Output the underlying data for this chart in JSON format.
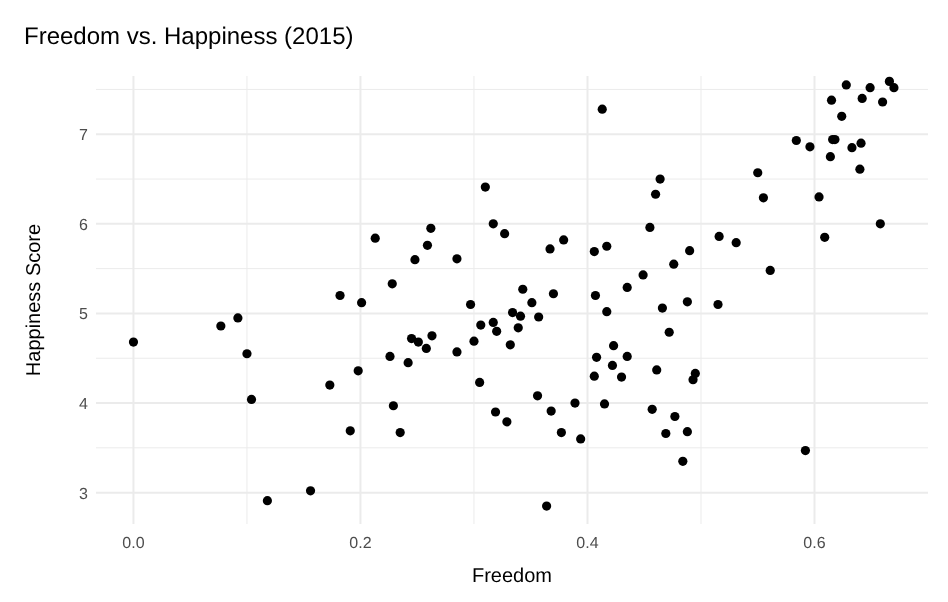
{
  "chart_data": {
    "type": "scatter",
    "title": "Freedom vs. Happiness (2015)",
    "xlabel": "Freedom",
    "ylabel": "Happiness Score",
    "xlim": [
      -0.033,
      0.7
    ],
    "ylim": [
      2.65,
      7.65
    ],
    "xticks": [
      {
        "value": 0,
        "label": "0.0"
      },
      {
        "value": 0.1,
        "label": null
      },
      {
        "value": 0.2,
        "label": "0.2"
      },
      {
        "value": 0.3,
        "label": null
      },
      {
        "value": 0.4,
        "label": "0.4"
      },
      {
        "value": 0.5,
        "label": null
      },
      {
        "value": 0.6,
        "label": "0.6"
      }
    ],
    "yticks": [
      3,
      {
        "value": 3.5,
        "label": null
      },
      4,
      {
        "value": 4.5,
        "label": null
      },
      5,
      {
        "value": 5.5,
        "label": null
      },
      6,
      {
        "value": 6.5,
        "label": null
      },
      7,
      {
        "value": 7.5,
        "label": null
      }
    ],
    "grid": true,
    "marker": "circle",
    "tick_labels": "xy",
    "series": [
      {
        "color": "#000000",
        "x": [
          0.182,
          0.201,
          0.213,
          0.228,
          0.248,
          0.259,
          0.262,
          0.285,
          0.297,
          0.31,
          0.317,
          0.327,
          0.343,
          0.351,
          0.367,
          0.379,
          0.37,
          0.413,
          0.406,
          0.417,
          0.407,
          0.435,
          0.449,
          0.455,
          0.46,
          0.464,
          0.476,
          0.49,
          0.516,
          0.531,
          0.55,
          0.555,
          0.561,
          0.584,
          0.596,
          0.604,
          0.609,
          0.615,
          0.616,
          0.618,
          0.614,
          0.624,
          0.628,
          0.633,
          0.641,
          0.64,
          0.642,
          0.649,
          0.658,
          0.66,
          0.666,
          0.67,
          0.417,
          0.466,
          0.488,
          0.515,
          0.0,
          0.077,
          0.092,
          0.1,
          0.104,
          0.118,
          0.156,
          0.173,
          0.191,
          0.198,
          0.226,
          0.229,
          0.235,
          0.242,
          0.245,
          0.251,
          0.258,
          0.263,
          0.285,
          0.3,
          0.305,
          0.306,
          0.317,
          0.319,
          0.32,
          0.329,
          0.332,
          0.334,
          0.339,
          0.341,
          0.357,
          0.356,
          0.368,
          0.364,
          0.377,
          0.389,
          0.394,
          0.406,
          0.408,
          0.415,
          0.422,
          0.423,
          0.43,
          0.435,
          0.461,
          0.457,
          0.472,
          0.469,
          0.477,
          0.484,
          0.488,
          0.493,
          0.495,
          0.592
        ],
        "values": [
          5.2,
          5.12,
          5.84,
          5.33,
          5.6,
          5.76,
          5.95,
          5.61,
          5.1,
          6.41,
          6.0,
          5.89,
          5.27,
          5.12,
          5.72,
          5.82,
          5.22,
          7.28,
          5.69,
          5.75,
          5.2,
          5.29,
          5.43,
          5.96,
          6.33,
          6.5,
          5.55,
          5.7,
          5.86,
          5.79,
          6.57,
          6.29,
          5.48,
          6.93,
          6.86,
          6.3,
          5.85,
          7.38,
          6.94,
          6.94,
          6.75,
          7.2,
          7.55,
          6.85,
          6.9,
          6.61,
          7.4,
          7.52,
          6.0,
          7.36,
          7.59,
          7.52,
          5.02,
          5.06,
          5.13,
          5.1,
          4.68,
          4.86,
          4.95,
          4.55,
          4.04,
          2.91,
          3.02,
          4.2,
          3.69,
          4.36,
          4.52,
          3.97,
          3.67,
          4.45,
          4.72,
          4.68,
          4.61,
          4.75,
          4.57,
          4.69,
          4.23,
          4.87,
          4.9,
          3.9,
          4.8,
          3.79,
          4.65,
          5.01,
          4.84,
          4.97,
          4.96,
          4.08,
          3.91,
          2.85,
          3.67,
          4.0,
          3.6,
          4.3,
          4.51,
          3.99,
          4.42,
          4.64,
          4.29,
          4.52,
          4.37,
          3.93,
          4.79,
          3.66,
          3.85,
          3.35,
          3.68,
          4.26,
          4.33,
          3.47
        ]
      }
    ]
  }
}
